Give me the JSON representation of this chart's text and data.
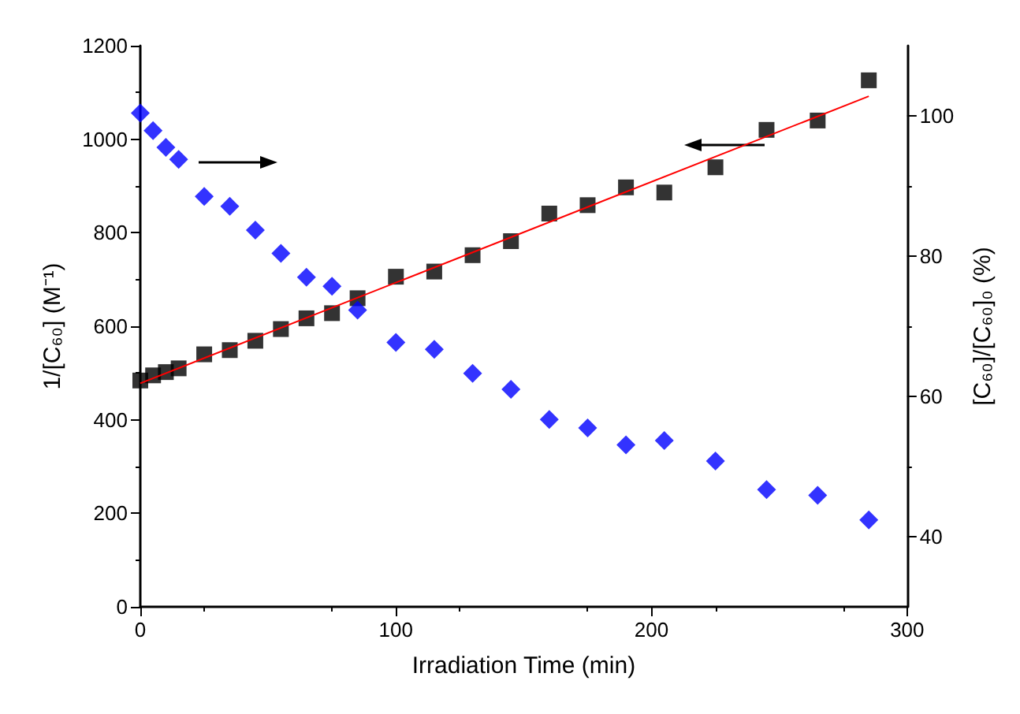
{
  "chart_data": {
    "type": "scatter",
    "xlabel": "Irradiation Time (min)",
    "ylabel": "1/[C₆₀] (M⁻¹)",
    "y2label": "[C₆₀]/[C₆₀]₀ (%)",
    "xlim": [
      0,
      300
    ],
    "xticks": [
      0,
      100,
      200,
      300
    ],
    "ylim": [
      0,
      1200
    ],
    "yticks": [
      0,
      200,
      400,
      600,
      800,
      1000,
      1200
    ],
    "y2lim": [
      30,
      110
    ],
    "y2ticks": [
      40,
      60,
      80,
      100
    ],
    "grid": false,
    "x": [
      0,
      5,
      10,
      15,
      25,
      35,
      45,
      55,
      65,
      75,
      85,
      100,
      115,
      130,
      145,
      160,
      175,
      190,
      205,
      225,
      245,
      265,
      285
    ],
    "series": [
      {
        "color": "#000000",
        "marker": "square",
        "values": [
          484,
          495,
          502,
          510,
          540,
          549,
          569,
          594,
          617,
          628,
          660,
          706,
          717,
          752,
          782,
          841,
          859,
          897,
          886,
          940,
          1020,
          1040,
          1126
        ]
      },
      {
        "color": "#0000ff",
        "marker": "diamond",
        "axis": "y2",
        "values": [
          100.4,
          97.9,
          95.5,
          93.8,
          88.5,
          87.1,
          83.7,
          80.4,
          77.0,
          75.7,
          72.3,
          67.7,
          66.7,
          63.3,
          61.0,
          56.7,
          55.5,
          53.1,
          53.7,
          50.8,
          46.7,
          45.9,
          42.4
        ]
      },
      {
        "type": "line",
        "color": "#ff0000",
        "marker": "none",
        "line_style": "solid",
        "x": [
          0,
          285
        ],
        "values": [
          478,
          1092
        ]
      }
    ]
  }
}
